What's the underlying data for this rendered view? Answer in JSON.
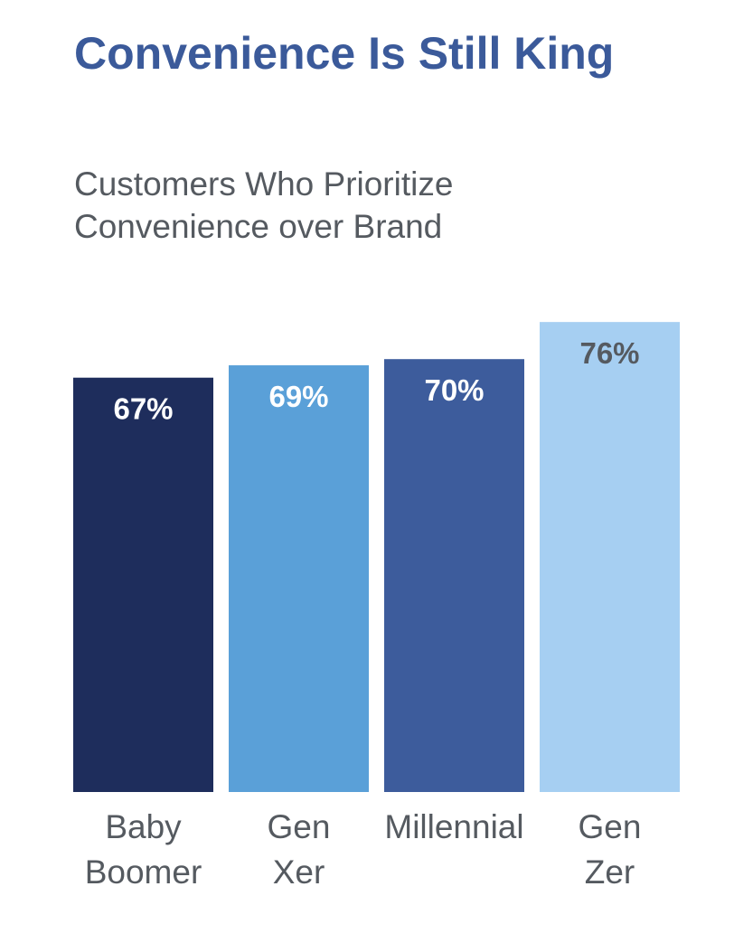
{
  "page": {
    "title": "Convenience Is Still King",
    "subtitle_lines": [
      "Customers Who Prioritize",
      "Convenience over Brand"
    ]
  },
  "chart_data": {
    "type": "bar",
    "title": "Customers Who Prioritize Convenience over Brand",
    "categories": [
      {
        "label_lines": [
          "Baby",
          "Boomer"
        ]
      },
      {
        "label_lines": [
          "Gen",
          "Xer"
        ]
      },
      {
        "label_lines": [
          "Millennial"
        ]
      },
      {
        "label_lines": [
          "Gen",
          "Zer"
        ]
      }
    ],
    "values": [
      67,
      69,
      70,
      76
    ],
    "value_labels": [
      "67%",
      "69%",
      "70%",
      "76%"
    ],
    "unit": "%",
    "colors": [
      "#1e2d5c",
      "#5aa0d8",
      "#3d5c9c",
      "#a6cff2"
    ],
    "label_colors": [
      "#ffffff",
      "#ffffff",
      "#ffffff",
      "#555a60"
    ],
    "xlabel": "",
    "ylabel": "",
    "grid": false,
    "legend": "none"
  }
}
